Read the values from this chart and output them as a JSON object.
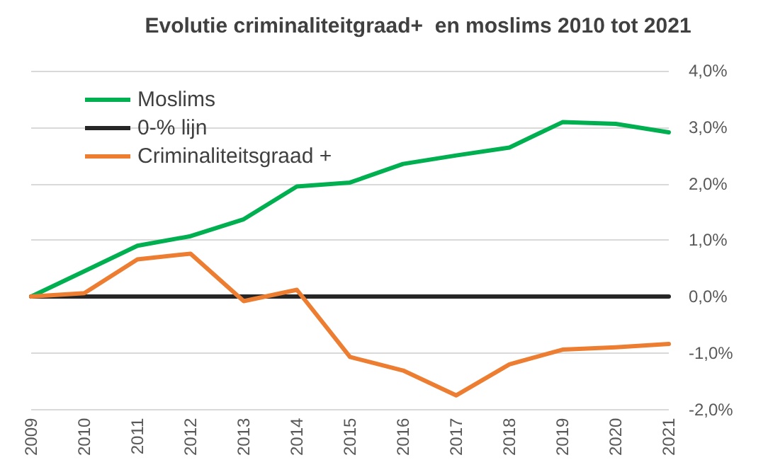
{
  "chart_data": {
    "type": "line",
    "title": "Evolutie criminaliteitgraad+  en moslims 2010 tot 2021",
    "categories": [
      "2009",
      "2010",
      "2011",
      "2012",
      "2013",
      "2014",
      "2015",
      "2016",
      "2017",
      "2018",
      "2019",
      "2020",
      "2021"
    ],
    "series": [
      {
        "name": "Moslims",
        "color": "#00b050",
        "values": [
          0,
          0.45,
          0.9,
          1.07,
          1.37,
          1.95,
          2.02,
          2.35,
          2.5,
          2.64,
          3.09,
          3.06,
          2.91
        ]
      },
      {
        "name": "0-% lijn",
        "color": "#262626",
        "values": [
          0,
          0,
          0,
          0,
          0,
          0,
          0,
          0,
          0,
          0,
          0,
          0,
          0
        ]
      },
      {
        "name": "Criminaliteitsgraad +",
        "color": "#ed7d31",
        "values": [
          0,
          0.06,
          0.66,
          0.76,
          -0.08,
          0.12,
          -1.07,
          -1.31,
          -1.75,
          -1.2,
          -0.94,
          -0.9,
          -0.84
        ]
      }
    ],
    "ylim": [
      -2,
      4
    ],
    "yticks": [
      {
        "value": -2,
        "label": "-2,0%"
      },
      {
        "value": -1,
        "label": "-1,0%"
      },
      {
        "value": 0,
        "label": "0,0%"
      },
      {
        "value": 1,
        "label": "1,0%"
      },
      {
        "value": 2,
        "label": "2,0%"
      },
      {
        "value": 3,
        "label": "3,0%"
      },
      {
        "value": 4,
        "label": "4,0%"
      }
    ],
    "grid": "y",
    "legend": "top left",
    "marker": "none",
    "line_style": "solid"
  }
}
